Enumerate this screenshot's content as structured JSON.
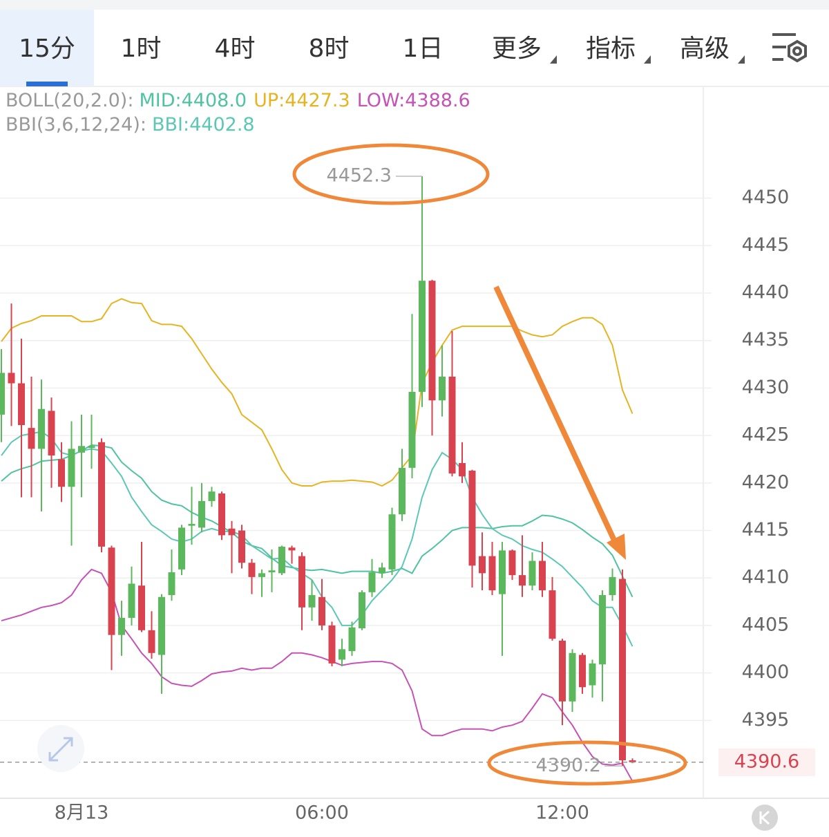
{
  "toolbar": {
    "tabs": [
      {
        "label": "15分"
      },
      {
        "label": "1时"
      },
      {
        "label": "4时"
      },
      {
        "label": "8时"
      },
      {
        "label": "1日"
      },
      {
        "label": "更多",
        "dropdown": true
      },
      {
        "label": "指标",
        "dropdown": true
      },
      {
        "label": "高级",
        "dropdown": true
      }
    ],
    "selected": 0
  },
  "chart_data": {
    "type": "candlestick",
    "categories": [
      null,
      null,
      null,
      null,
      null,
      null,
      null,
      null,
      "8月13",
      null,
      null,
      null,
      null,
      null,
      null,
      null,
      null,
      null,
      null,
      null,
      null,
      null,
      null,
      null,
      null,
      null,
      null,
      null,
      null,
      null,
      null,
      null,
      "06:00",
      null,
      null,
      null,
      null,
      null,
      null,
      null,
      null,
      null,
      null,
      null,
      null,
      null,
      null,
      null,
      null,
      null,
      null,
      null,
      null,
      null,
      null,
      null,
      "12:00",
      null,
      null,
      null,
      null,
      null,
      null,
      null
    ],
    "open": [
      4427.2,
      4431.6,
      4430.5,
      4425.8,
      4423.6,
      4427.6,
      4422.5,
      4419.6,
      4423.2,
      4423.7,
      4424.3,
      4413.2,
      4404.0,
      4405.8,
      4409.2,
      4404.5,
      4401.9,
      4408.2,
      4410.9,
      4415.5,
      4415.3,
      4418.1,
      4418.9,
      4415.2,
      4415.0,
      4411.6,
      4410.1,
      4410.6,
      4410.5,
      4413.2,
      4412.3,
      4406.9,
      4408.0,
      4405.0,
      4401.4,
      4402.3,
      4404.7,
      4408.5,
      4410.5,
      4410.9,
      4416.7,
      4421.6,
      4429.6,
      4441.3,
      4428.7,
      4431.2,
      4422.1,
      4421.3,
      4412.3,
      4412.3,
      4408.3,
      4412.9,
      4410.3,
      4409.2,
      4411.8,
      4408.7,
      4403.4,
      4397.0,
      4401.9,
      4398.7,
      4400.9,
      4408.2,
      4409.9,
      4390.8
    ],
    "high": [
      4434.1,
      4438.9,
      4435.2,
      4431.2,
      4430.9,
      4429.0,
      4424.3,
      4426.5,
      4427.2,
      4427.2,
      4424.7,
      4413.4,
      4407.6,
      4411.2,
      4413.8,
      4406.5,
      4408.3,
      4413.0,
      4415.6,
      4419.6,
      4420.0,
      4419.6,
      4419.1,
      4416.0,
      4415.6,
      4412.0,
      4410.9,
      4413.0,
      4413.4,
      4413.4,
      4412.7,
      4409.8,
      4409.9,
      4405.4,
      4403.6,
      4405.4,
      4408.7,
      4412.0,
      4411.6,
      4417.4,
      4423.6,
      4437.8,
      4452.3,
      4441.4,
      4434.5,
      4436.0,
      4424.3,
      4421.4,
      4414.8,
      4413.8,
      4413.8,
      4413.0,
      4414.5,
      4412.7,
      4413.8,
      4410.1,
      4403.6,
      4402.5,
      4402.1,
      4401.4,
      4408.7,
      4411.0,
      4410.9,
      4391.0
    ],
    "low": [
      4424.3,
      4426.0,
      4418.5,
      4418.5,
      4417.0,
      4419.5,
      4418.0,
      4413.4,
      4418.5,
      4421.5,
      4412.7,
      4400.3,
      4401.8,
      4405.0,
      4404.3,
      4401.5,
      4397.8,
      4407.6,
      4410.3,
      4413.5,
      4414.8,
      4417.5,
      4414.0,
      4410.5,
      4411.0,
      4408.3,
      4408.0,
      4408.5,
      4410.3,
      4411.5,
      4404.5,
      4405.5,
      4404.5,
      4400.7,
      4400.7,
      4401.8,
      4404.5,
      4408.0,
      4410.0,
      4410.3,
      4416.0,
      4420.5,
      4428.0,
      4425.0,
      4427.0,
      4420.7,
      4420.0,
      4409.0,
      4408.7,
      4408.2,
      4401.8,
      4409.8,
      4408.0,
      4408.7,
      4408.0,
      4403.4,
      4394.5,
      4395.9,
      4397.8,
      4397.4,
      4397.0,
      4407.6,
      4390.2,
      4390.5
    ],
    "close": [
      4431.6,
      4430.5,
      4426.1,
      4423.6,
      4427.8,
      4422.9,
      4419.6,
      4423.6,
      4423.9,
      4423.9,
      4413.3,
      4404.0,
      4405.8,
      4409.4,
      4404.5,
      4402.1,
      4408.0,
      4410.6,
      4415.3,
      4415.7,
      4418.1,
      4419.1,
      4414.5,
      4414.5,
      4411.6,
      4410.1,
      4410.5,
      4410.8,
      4413.3,
      4412.9,
      4406.9,
      4408.2,
      4405.0,
      4401.0,
      4402.5,
      4404.8,
      4408.5,
      4410.6,
      4411.1,
      4416.7,
      4421.6,
      4429.6,
      4441.3,
      4428.7,
      4431.2,
      4421.0,
      4420.7,
      4411.3,
      4410.5,
      4408.7,
      4412.9,
      4410.3,
      4409.2,
      4411.8,
      4408.7,
      4403.6,
      4397.0,
      4402.1,
      4398.5,
      4401.0,
      4408.2,
      4410.1,
      4390.8,
      4390.6
    ],
    "up_color": "#5cb85c",
    "down_color": "#d9434f",
    "indicator_labels": [
      "BOLL(20,2.0):",
      "BBI(3,6,12,24):"
    ],
    "lines": [
      {
        "legend": "MID:4408.0",
        "color": "#4fc3a1",
        "values": [
          4420.2,
          4421.1,
          4421.5,
          4421.8,
          4422.3,
          4422.4,
          4422.5,
          4422.9,
          4423.4,
          4424.0,
          4423.9,
          4423.7,
          4422.2,
          4421.3,
          4420.5,
          4419.1,
          4418.2,
          4417.8,
          4417.6,
          4416.9,
          4416.4,
          4416.0,
          4415.4,
          4414.8,
          4413.9,
          4413.4,
          4413.1,
          4412.1,
          4411.3,
          4411.1,
          4410.9,
          4410.8,
          4410.9,
          4410.7,
          4410.5,
          4410.7,
          4410.7,
          4410.7,
          4410.5,
          4410.7,
          4411.0,
          4410.5,
          4412.3,
          4413.1,
          4414.0,
          4415.0,
          4415.3,
          4415.3,
          4415.3,
          4415.2,
          4415.4,
          4415.5,
          4415.5,
          4416.0,
          4416.6,
          4416.5,
          4416.2,
          4415.8,
          4415.1,
          4414.3,
          4413.6,
          4412.4,
          4410.2,
          4408.0
        ]
      },
      {
        "legend": "UP:4427.3",
        "color": "#e6b422",
        "values": [
          4434.9,
          4436.3,
          4436.8,
          4437.1,
          4437.6,
          4437.6,
          4437.6,
          4437.6,
          4437.0,
          4437.0,
          4437.3,
          4438.9,
          4439.4,
          4439.0,
          4438.9,
          4437.1,
          4436.7,
          4436.7,
          4436.5,
          4435.2,
          4433.6,
          4432.0,
          4430.6,
          4429.4,
          4427.2,
          4426.4,
          4425.6,
          4423.6,
          4421.4,
          4420.0,
          4419.7,
          4419.7,
          4420.1,
          4420.2,
          4420.2,
          4420.3,
          4420.2,
          4420.1,
          4419.7,
          4420.3,
          4421.6,
          4422.9,
          4430.5,
          4432.7,
          4434.5,
          4436.1,
          4436.5,
          4436.5,
          4436.5,
          4436.5,
          4436.5,
          4436.5,
          4436.0,
          4435.6,
          4435.4,
          4435.6,
          4436.5,
          4437.0,
          4437.4,
          4437.4,
          4436.7,
          4434.5,
          4429.8,
          4427.3
        ]
      },
      {
        "legend": "LOW:4388.6",
        "color": "#c552b5",
        "values": [
          4405.5,
          4405.8,
          4406.1,
          4406.5,
          4406.9,
          4407.1,
          4407.4,
          4408.2,
          4409.8,
          4410.9,
          4410.5,
          4408.5,
          4405.0,
          4403.6,
          4402.1,
          4401.0,
          4399.6,
          4398.9,
          4398.7,
          4398.6,
          4399.2,
          4399.9,
          4400.1,
          4400.2,
          4400.5,
          4400.3,
          4400.5,
          4400.5,
          4401.2,
          4402.1,
          4402.1,
          4401.9,
          4401.6,
          4401.2,
          4400.8,
          4401.0,
          4401.1,
          4401.2,
          4401.2,
          4401.0,
          4400.3,
          4398.1,
          4394.1,
          4393.4,
          4393.4,
          4393.8,
          4394.1,
          4394.1,
          4394.1,
          4393.9,
          4394.3,
          4394.5,
          4394.9,
          4396.3,
          4397.8,
          4397.4,
          4395.9,
          4394.5,
          4392.7,
          4391.2,
          4390.4,
          4390.3,
          4390.5,
          4388.6
        ]
      },
      {
        "legend": "BBI:4402.8",
        "color": "#5bc8b5",
        "values": [
          4422.9,
          4424.3,
          4425.0,
          4425.2,
          4425.4,
          4424.7,
          4423.2,
          4422.9,
          4423.4,
          4423.6,
          4423.4,
          4422.1,
          4420.7,
          4418.5,
          4417.0,
          4415.6,
          4414.9,
          4414.1,
          4413.8,
          4414.1,
          4414.9,
          4415.2,
          4414.9,
          4414.9,
          4414.5,
          4413.4,
          4412.7,
          4412.0,
          4412.1,
          4411.2,
          4410.5,
          4409.8,
          4408.0,
          4406.9,
          4405.0,
          4405.0,
          4406.1,
          4407.6,
          4408.7,
          4409.8,
          4411.2,
          4414.1,
          4418.5,
          4421.4,
          4423.2,
          4422.5,
          4421.4,
          4418.5,
          4416.7,
          4415.2,
          4414.5,
          4414.1,
          4413.4,
          4413.0,
          4412.7,
          4412.0,
          4411.2,
          4410.1,
          4409.0,
          4407.6,
          4406.9,
          4406.9,
          4405.0,
          4402.8
        ]
      }
    ],
    "ylim": [
      4386.8,
      4461.4
    ],
    "yticks": [
      4395,
      4400,
      4405,
      4410,
      4415,
      4420,
      4425,
      4430,
      4435,
      4440,
      4445,
      4450
    ],
    "grid": true,
    "max_label": 4452.3,
    "min_label": 4390.2,
    "last_price": 4390.6
  }
}
